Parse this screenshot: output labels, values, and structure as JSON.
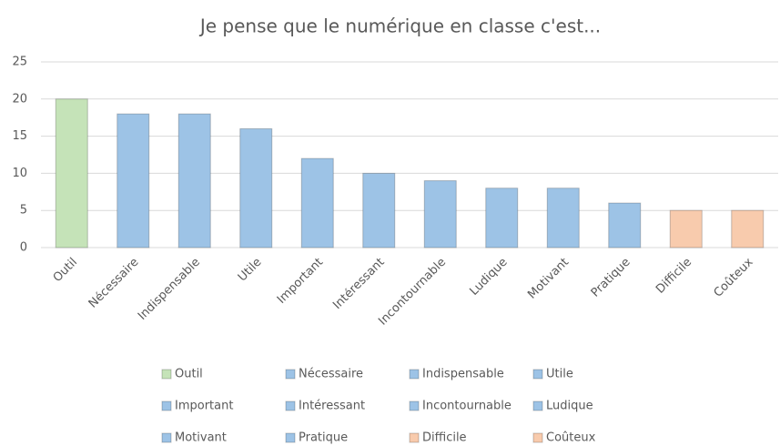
{
  "chart_data": {
    "type": "bar",
    "title": "Je pense que le numérique en classe c'est...",
    "categories": [
      "Outil",
      "Nécessaire",
      "Indispensable",
      "Utile",
      "Important",
      "Intéressant",
      "Incontournable",
      "Ludique",
      "Motivant",
      "Pratique",
      "Difficile",
      "Coûteux"
    ],
    "values": [
      20,
      18,
      18,
      16,
      12,
      10,
      9,
      8,
      8,
      6,
      5,
      5
    ],
    "colors": [
      "#c5e3b8",
      "#9dc3e6",
      "#9dc3e6",
      "#9dc3e6",
      "#9dc3e6",
      "#9dc3e6",
      "#9dc3e6",
      "#9dc3e6",
      "#9dc3e6",
      "#9dc3e6",
      "#f8cbad",
      "#f8cbad"
    ],
    "ylim": [
      0,
      25
    ],
    "yticks": [
      0,
      5,
      10,
      15,
      20,
      25
    ],
    "grid": true,
    "legend": "bottom"
  }
}
